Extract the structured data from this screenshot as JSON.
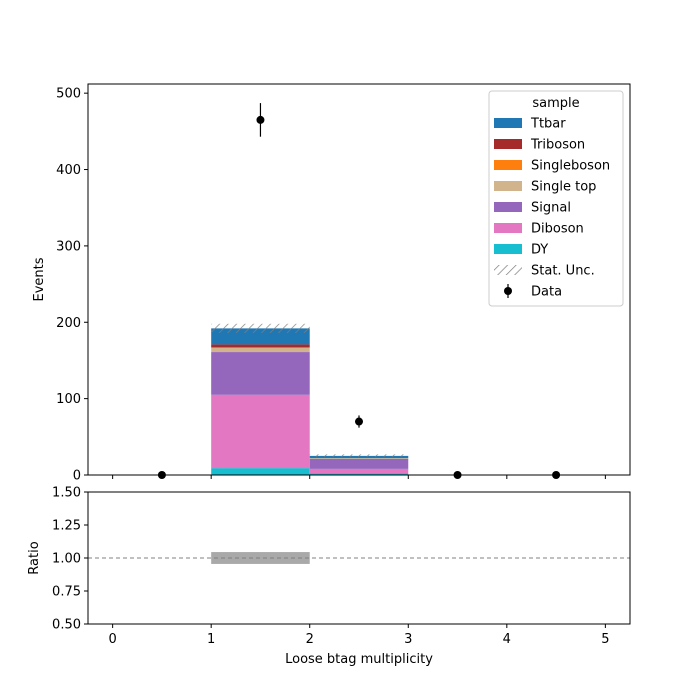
{
  "chart_data": [
    {
      "type": "bar",
      "stacked": true,
      "x_edges": [
        0,
        1,
        2,
        3,
        4,
        5
      ],
      "xlim": [
        -0.25,
        5.25
      ],
      "ylim": [
        0,
        512
      ],
      "ylabel": "Events",
      "yticks": [
        0,
        100,
        200,
        300,
        400,
        500
      ],
      "series": [
        {
          "name": "DY",
          "color": "#17becf",
          "values": [
            0,
            9,
            2,
            0,
            0
          ]
        },
        {
          "name": "Diboson",
          "color": "#e377c2",
          "values": [
            0,
            96,
            6,
            0,
            0
          ]
        },
        {
          "name": "Signal",
          "color": "#9467bd",
          "values": [
            0,
            56,
            13,
            0,
            0
          ]
        },
        {
          "name": "Single top",
          "color": "#d2b48c",
          "values": [
            0,
            6,
            1,
            0,
            0
          ]
        },
        {
          "name": "Singleboson",
          "color": "#ff7f0e",
          "values": [
            0,
            0,
            0,
            0,
            0
          ]
        },
        {
          "name": "Triboson",
          "color": "#a52a2a",
          "values": [
            0,
            4,
            0,
            0,
            0
          ]
        },
        {
          "name": "Ttbar",
          "color": "#1f77b4",
          "values": [
            0,
            21,
            3,
            0,
            0
          ]
        }
      ],
      "stat_unc": {
        "name": "Stat. Unc.",
        "low": [
          0,
          186,
          24,
          0,
          0
        ],
        "high": [
          0,
          198,
          27,
          0,
          0
        ]
      },
      "data": {
        "name": "Data",
        "x": [
          0.5,
          1.5,
          2.5,
          3.5,
          4.5
        ],
        "y": [
          0,
          465,
          70,
          0,
          0
        ],
        "yerr": [
          0,
          22,
          8,
          0,
          0
        ]
      },
      "legend": {
        "title": "sample",
        "placement": "top-right",
        "order": [
          "Ttbar",
          "Triboson",
          "Singleboson",
          "Single top",
          "Signal",
          "Diboson",
          "DY",
          "Stat. Unc.",
          "Data"
        ]
      }
    },
    {
      "type": "ratio",
      "ylabel": "Ratio",
      "xlabel": "Loose btag multiplicity",
      "ylim": [
        0.5,
        1.5
      ],
      "yticks": [
        "0.50",
        "0.75",
        "1.00",
        "1.25",
        "1.50"
      ],
      "xticks": [
        "0",
        "1",
        "2",
        "3",
        "4",
        "5"
      ],
      "reference_line": 1.0,
      "unc_band": [
        {
          "x0": 1,
          "x1": 2,
          "low": 0.955,
          "high": 1.045,
          "color": "#a9a9a9"
        }
      ]
    }
  ]
}
